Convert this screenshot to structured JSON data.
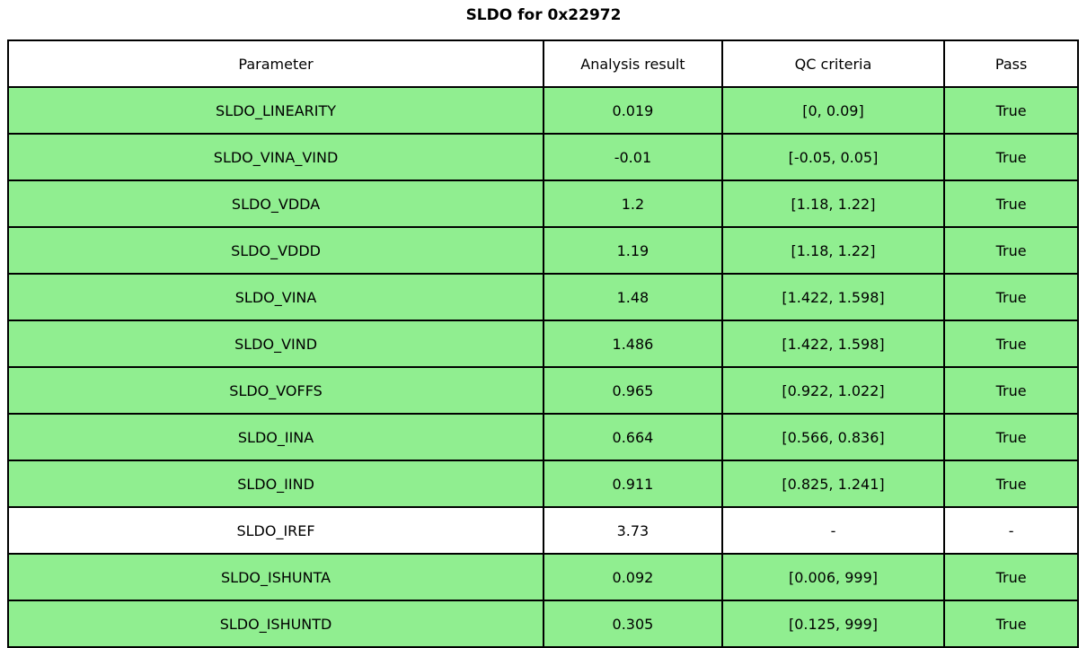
{
  "chart_data": {
    "type": "table",
    "title": "SLDO for 0x22972",
    "columns": [
      "Parameter",
      "Analysis result",
      "QC criteria",
      "Pass"
    ],
    "rows": [
      {
        "parameter": "SLDO_LINEARITY",
        "analysis_result": "0.019",
        "qc_criteria": "[0, 0.09]",
        "pass": "True",
        "row_color": "#90ee90"
      },
      {
        "parameter": "SLDO_VINA_VIND",
        "analysis_result": "-0.01",
        "qc_criteria": "[-0.05, 0.05]",
        "pass": "True",
        "row_color": "#90ee90"
      },
      {
        "parameter": "SLDO_VDDA",
        "analysis_result": "1.2",
        "qc_criteria": "[1.18, 1.22]",
        "pass": "True",
        "row_color": "#90ee90"
      },
      {
        "parameter": "SLDO_VDDD",
        "analysis_result": "1.19",
        "qc_criteria": "[1.18, 1.22]",
        "pass": "True",
        "row_color": "#90ee90"
      },
      {
        "parameter": "SLDO_VINA",
        "analysis_result": "1.48",
        "qc_criteria": "[1.422, 1.598]",
        "pass": "True",
        "row_color": "#90ee90"
      },
      {
        "parameter": "SLDO_VIND",
        "analysis_result": "1.486",
        "qc_criteria": "[1.422, 1.598]",
        "pass": "True",
        "row_color": "#90ee90"
      },
      {
        "parameter": "SLDO_VOFFS",
        "analysis_result": "0.965",
        "qc_criteria": "[0.922, 1.022]",
        "pass": "True",
        "row_color": "#90ee90"
      },
      {
        "parameter": "SLDO_IINA",
        "analysis_result": "0.664",
        "qc_criteria": "[0.566, 0.836]",
        "pass": "True",
        "row_color": "#90ee90"
      },
      {
        "parameter": "SLDO_IIND",
        "analysis_result": "0.911",
        "qc_criteria": "[0.825, 1.241]",
        "pass": "True",
        "row_color": "#90ee90"
      },
      {
        "parameter": "SLDO_IREF",
        "analysis_result": "3.73",
        "qc_criteria": "-",
        "pass": "-",
        "row_color": "#ffffff"
      },
      {
        "parameter": "SLDO_ISHUNTA",
        "analysis_result": "0.092",
        "qc_criteria": "[0.006, 999]",
        "pass": "True",
        "row_color": "#90ee90"
      },
      {
        "parameter": "SLDO_ISHUNTD",
        "analysis_result": "0.305",
        "qc_criteria": "[0.125, 999]",
        "pass": "True",
        "row_color": "#90ee90"
      }
    ],
    "layout": {
      "header_bg": "#ffffff",
      "pass_row_color": "#90ee90",
      "neutral_row_color": "#ffffff",
      "border_color": "#000000",
      "grid": "full",
      "legend": "none"
    }
  }
}
